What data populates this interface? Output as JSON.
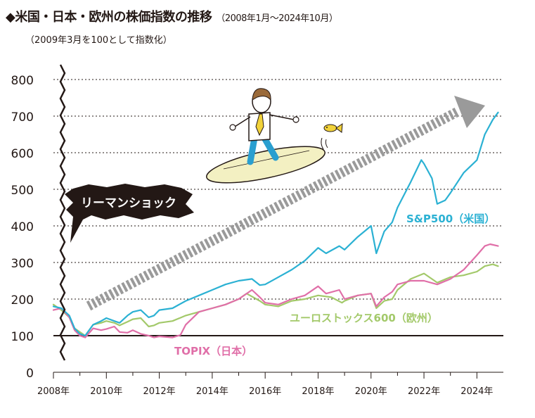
{
  "header": {
    "title": "◆米国・日本・欧州の株価指数の推移",
    "period": "（2008年1月～2024年10月）",
    "note": "（2009年3月を100として指数化）"
  },
  "colors": {
    "sp500": "#2bb1d3",
    "topix": "#e06fa8",
    "euro": "#a3c96a",
    "arrow": "#9a9a9a",
    "surf": "#f3f0c2"
  },
  "callout": "リーマンショック",
  "chart_data": {
    "type": "line",
    "ylim": [
      0,
      800
    ],
    "yticks": [
      0,
      100,
      200,
      300,
      400,
      500,
      600,
      700,
      800
    ],
    "xlim": [
      2008,
      2025
    ],
    "xticks": [
      2008,
      2010,
      2012,
      2014,
      2016,
      2018,
      2020,
      2022,
      2024
    ],
    "xticklabels": [
      "2008年",
      "2010年",
      "2012年",
      "2014年",
      "2016年",
      "2018年",
      "2020年",
      "2022年",
      "2024年"
    ],
    "baseline": 100,
    "series": [
      {
        "name": "S&P500（米国）",
        "key": "sp500",
        "x": [
          2008.0,
          2008.3,
          2008.6,
          2008.8,
          2009.0,
          2009.2,
          2009.5,
          2009.8,
          2010.0,
          2010.3,
          2010.5,
          2010.8,
          2011.0,
          2011.3,
          2011.6,
          2011.8,
          2012.0,
          2012.5,
          2013.0,
          2013.5,
          2014.0,
          2014.5,
          2015.0,
          2015.5,
          2015.8,
          2016.0,
          2016.5,
          2017.0,
          2017.5,
          2018.0,
          2018.3,
          2018.8,
          2019.0,
          2019.5,
          2020.0,
          2020.2,
          2020.5,
          2020.8,
          2021.0,
          2021.5,
          2021.9,
          2022.0,
          2022.3,
          2022.5,
          2022.8,
          2023.0,
          2023.5,
          2024.0,
          2024.3,
          2024.6,
          2024.8
        ],
        "values": [
          180,
          175,
          155,
          120,
          105,
          100,
          130,
          140,
          148,
          140,
          135,
          155,
          165,
          170,
          150,
          155,
          170,
          175,
          195,
          210,
          225,
          240,
          250,
          255,
          238,
          240,
          260,
          280,
          305,
          340,
          325,
          345,
          335,
          370,
          400,
          325,
          385,
          410,
          450,
          520,
          580,
          570,
          530,
          460,
          470,
          490,
          545,
          580,
          650,
          690,
          710
        ]
      },
      {
        "name": "TOPIX（日本）",
        "key": "topix",
        "x": [
          2008.0,
          2008.3,
          2008.6,
          2008.8,
          2009.0,
          2009.2,
          2009.5,
          2009.8,
          2010.0,
          2010.3,
          2010.5,
          2010.8,
          2011.0,
          2011.3,
          2011.6,
          2011.8,
          2012.0,
          2012.5,
          2012.8,
          2013.0,
          2013.5,
          2014.0,
          2014.5,
          2015.0,
          2015.5,
          2015.8,
          2016.0,
          2016.5,
          2017.0,
          2017.5,
          2018.0,
          2018.3,
          2018.8,
          2019.0,
          2019.5,
          2020.0,
          2020.2,
          2020.5,
          2020.8,
          2021.0,
          2021.5,
          2022.0,
          2022.5,
          2023.0,
          2023.5,
          2024.0,
          2024.3,
          2024.5,
          2024.8
        ],
        "values": [
          170,
          175,
          150,
          115,
          100,
          95,
          120,
          115,
          118,
          125,
          110,
          108,
          115,
          105,
          100,
          95,
          98,
          95,
          102,
          130,
          165,
          175,
          185,
          200,
          225,
          205,
          190,
          185,
          200,
          210,
          235,
          215,
          225,
          200,
          210,
          215,
          180,
          205,
          220,
          240,
          250,
          250,
          240,
          255,
          280,
          320,
          345,
          350,
          345
        ]
      },
      {
        "name": "ユーロストックス600（欧州）",
        "key": "euro",
        "x": [
          2008.0,
          2008.3,
          2008.6,
          2008.8,
          2009.0,
          2009.2,
          2009.5,
          2009.8,
          2010.0,
          2010.3,
          2010.5,
          2010.8,
          2011.0,
          2011.3,
          2011.6,
          2011.8,
          2012.0,
          2012.5,
          2013.0,
          2013.5,
          2014.0,
          2014.5,
          2015.0,
          2015.3,
          2015.8,
          2016.0,
          2016.5,
          2017.0,
          2017.5,
          2018.0,
          2018.5,
          2018.9,
          2019.0,
          2019.5,
          2020.0,
          2020.2,
          2020.5,
          2020.8,
          2021.0,
          2021.5,
          2022.0,
          2022.5,
          2023.0,
          2023.5,
          2024.0,
          2024.3,
          2024.6,
          2024.8
        ],
        "values": [
          185,
          170,
          150,
          120,
          110,
          100,
          130,
          135,
          140,
          135,
          128,
          138,
          145,
          148,
          125,
          128,
          135,
          140,
          155,
          165,
          175,
          185,
          200,
          215,
          195,
          185,
          180,
          195,
          200,
          210,
          205,
          190,
          195,
          210,
          215,
          175,
          195,
          200,
          225,
          255,
          270,
          245,
          260,
          265,
          275,
          290,
          295,
          290
        ]
      }
    ],
    "labels": {
      "sp500": "S&P500（米国）",
      "topix": "TOPIX（日本）",
      "euro": "ユーロストックス600（欧州）"
    }
  }
}
